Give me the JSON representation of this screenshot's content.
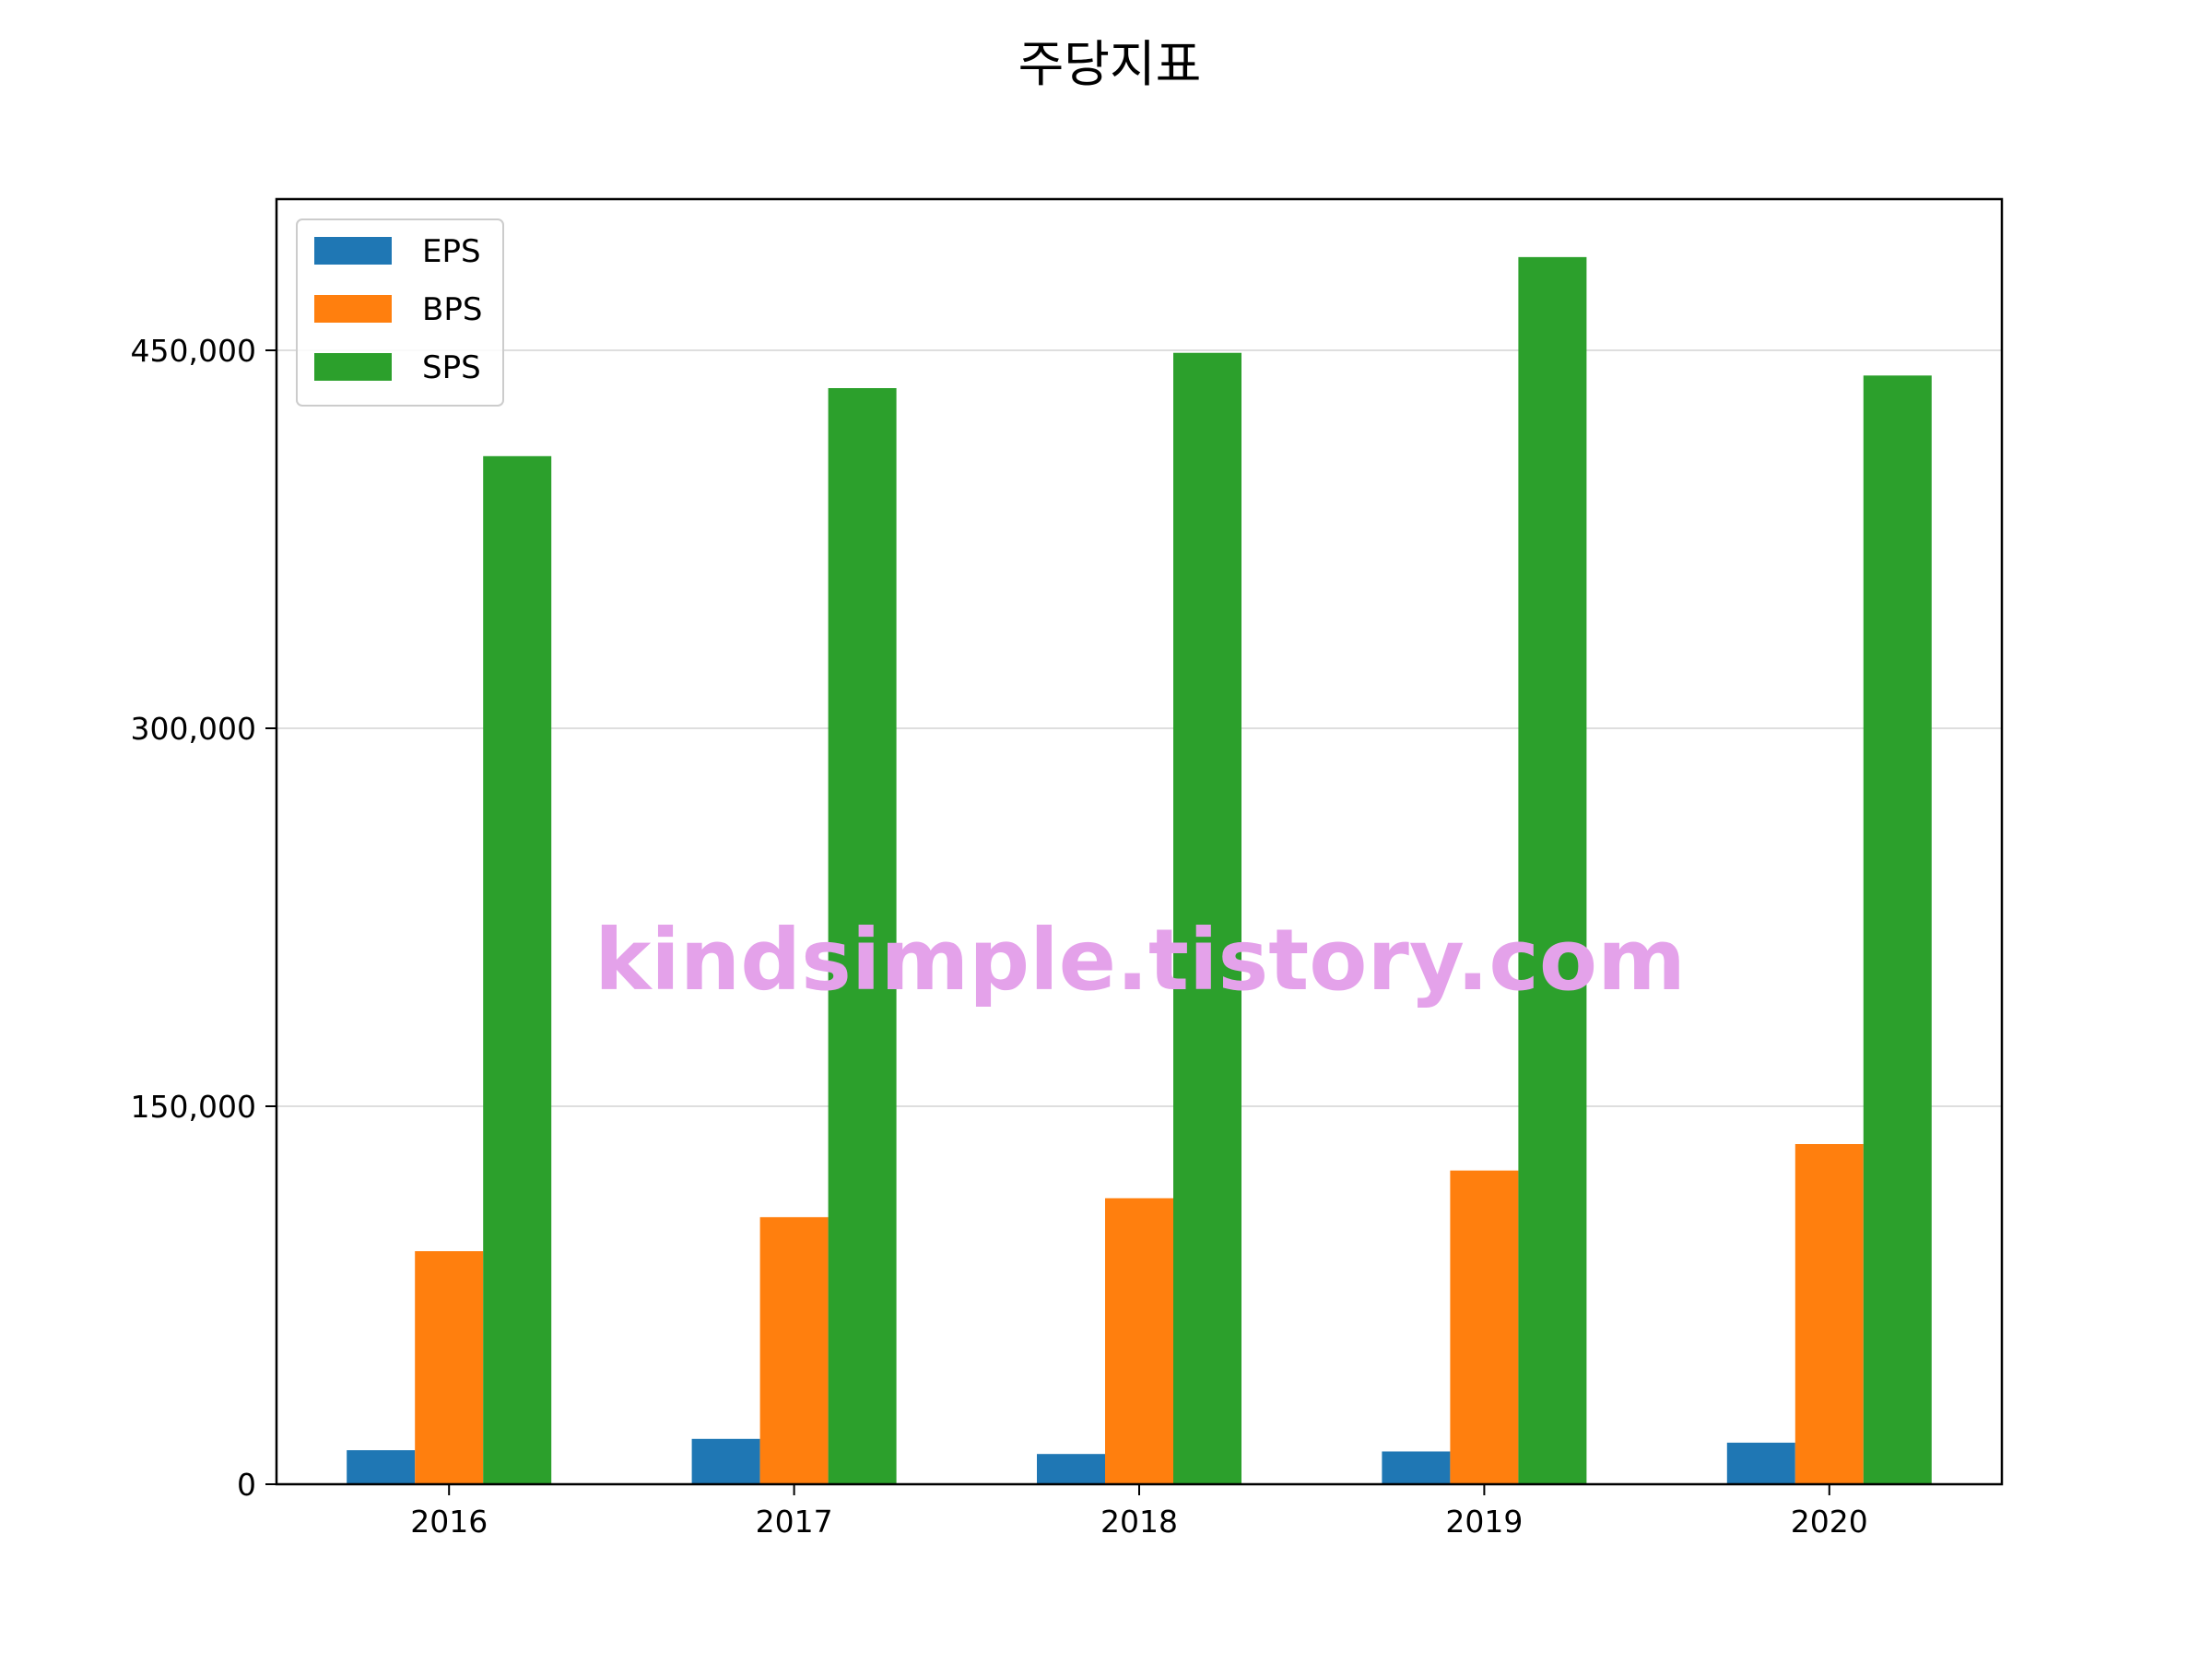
{
  "chart_data": {
    "type": "bar",
    "title": "주당지표",
    "xlabel": "",
    "ylabel": "",
    "categories": [
      "2016",
      "2017",
      "2018",
      "2019",
      "2020"
    ],
    "series": [
      {
        "name": "EPS",
        "color": "#1f77b4",
        "values": [
          13500,
          18000,
          12000,
          13000,
          16500
        ]
      },
      {
        "name": "BPS",
        "color": "#ff7f0e",
        "values": [
          92500,
          106000,
          113500,
          124500,
          135000
        ]
      },
      {
        "name": "SPS",
        "color": "#2ca02c",
        "values": [
          408000,
          435000,
          449000,
          487000,
          440000
        ]
      }
    ],
    "ylim": [
      0,
      510000
    ],
    "yticks": [
      0,
      150000,
      300000,
      450000
    ],
    "ytick_labels": [
      "0",
      "150,000",
      "300,000",
      "450,000"
    ],
    "grid": "y",
    "legend": "top-left",
    "watermark": "kindsimple.tistory.com"
  }
}
